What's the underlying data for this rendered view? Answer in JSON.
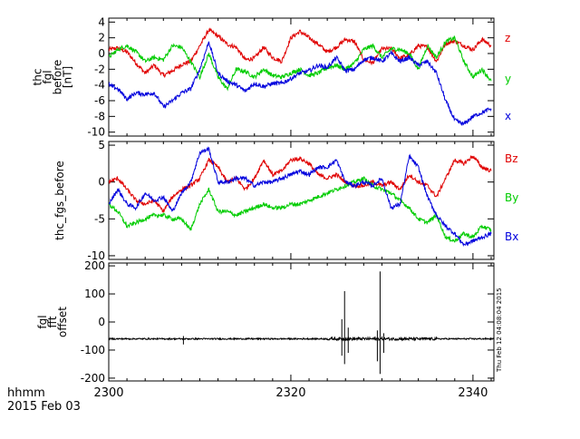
{
  "chart_data": [
    {
      "type": "line",
      "ylabel_lines": [
        "thc",
        "fgl",
        "before",
        "[nT]"
      ],
      "ylim": [
        -10.5,
        4.5
      ],
      "yticks": [
        -10,
        -8,
        -6,
        -4,
        -2,
        0,
        2,
        4
      ],
      "xlim": [
        2300,
        2342.3
      ],
      "legend_position": "right",
      "series": [
        {
          "name": "z",
          "color": "#e00000",
          "x": [
            2300,
            2301,
            2302,
            2303,
            2304,
            2305,
            2306,
            2307,
            2308,
            2309,
            2310,
            2311,
            2312,
            2313,
            2314,
            2315,
            2316,
            2317,
            2318,
            2319,
            2320,
            2321,
            2322,
            2323,
            2324,
            2325,
            2326,
            2327,
            2328,
            2329,
            2330,
            2331,
            2332,
            2333,
            2334,
            2335,
            2336,
            2337,
            2338,
            2339,
            2340,
            2341,
            2342
          ],
          "y": [
            0.5,
            0.7,
            0.2,
            -1.2,
            -2.5,
            -1.5,
            -2.8,
            -2.2,
            -1.4,
            -1.0,
            1.0,
            3.0,
            2.2,
            1.2,
            0.8,
            -0.8,
            -0.6,
            0.8,
            -0.5,
            -1.0,
            2.0,
            2.8,
            2.0,
            1.2,
            0.2,
            0.8,
            1.8,
            1.5,
            -0.8,
            -1.2,
            0.6,
            0.6,
            -0.6,
            -0.2,
            1.0,
            0.8,
            -1.0,
            1.3,
            1.6,
            1.0,
            0.5,
            1.8,
            1.0
          ]
        },
        {
          "name": "y",
          "color": "#00cc00",
          "x": [
            2300,
            2301,
            2302,
            2303,
            2304,
            2305,
            2306,
            2307,
            2308,
            2309,
            2310,
            2311,
            2312,
            2313,
            2314,
            2315,
            2316,
            2317,
            2318,
            2319,
            2320,
            2321,
            2322,
            2323,
            2324,
            2325,
            2326,
            2327,
            2328,
            2329,
            2330,
            2331,
            2332,
            2333,
            2334,
            2335,
            2336,
            2337,
            2338,
            2339,
            2340,
            2341,
            2342
          ],
          "y": [
            -0.5,
            0.5,
            1.0,
            0.2,
            -1.0,
            -0.5,
            -0.8,
            1.0,
            0.8,
            -1.0,
            -3.0,
            0.0,
            -3.0,
            -4.5,
            -2.0,
            -2.3,
            -3.0,
            -2.0,
            -2.8,
            -3.0,
            -2.5,
            -2.0,
            -2.8,
            -2.5,
            -1.8,
            -1.5,
            -2.0,
            -1.2,
            0.5,
            1.0,
            -0.5,
            0.6,
            0.5,
            0.0,
            -2.0,
            1.0,
            -0.5,
            1.5,
            2.0,
            -1.0,
            -3.0,
            -2.0,
            -3.5
          ]
        },
        {
          "name": "x",
          "color": "#0000dd",
          "x": [
            2300,
            2301,
            2302,
            2303,
            2304,
            2305,
            2306,
            2307,
            2308,
            2309,
            2310,
            2311,
            2312,
            2313,
            2314,
            2315,
            2316,
            2317,
            2318,
            2319,
            2320,
            2321,
            2322,
            2323,
            2324,
            2325,
            2326,
            2327,
            2328,
            2329,
            2330,
            2331,
            2332,
            2333,
            2334,
            2335,
            2336,
            2337,
            2338,
            2339,
            2340,
            2341,
            2342
          ],
          "y": [
            -4.0,
            -4.5,
            -5.8,
            -5.0,
            -5.2,
            -5.0,
            -6.8,
            -6.0,
            -5.0,
            -4.5,
            -2.0,
            1.5,
            -2.5,
            -3.5,
            -4.0,
            -4.8,
            -3.8,
            -4.2,
            -3.8,
            -3.8,
            -3.2,
            -2.5,
            -2.2,
            -1.5,
            -1.8,
            -0.5,
            -2.2,
            -2.0,
            -0.8,
            -0.5,
            -1.0,
            0.0,
            -1.0,
            -0.5,
            -1.5,
            -1.0,
            -2.5,
            -6.0,
            -8.5,
            -9.0,
            -8.0,
            -7.5,
            -7.0
          ]
        }
      ]
    },
    {
      "type": "line",
      "ylabel_lines": [
        "thc_fgs_before"
      ],
      "ylim": [
        -10.5,
        5.5
      ],
      "yticks": [
        -10,
        -5,
        0,
        5
      ],
      "xlim": [
        2300,
        2342.3
      ],
      "legend_position": "right",
      "series": [
        {
          "name": "Bz",
          "color": "#e00000",
          "x": [
            2300,
            2301,
            2302,
            2303,
            2304,
            2305,
            2306,
            2307,
            2308,
            2309,
            2310,
            2311,
            2312,
            2313,
            2314,
            2315,
            2316,
            2317,
            2318,
            2319,
            2320,
            2321,
            2322,
            2323,
            2324,
            2325,
            2326,
            2327,
            2328,
            2329,
            2330,
            2331,
            2332,
            2333,
            2334,
            2335,
            2336,
            2337,
            2338,
            2339,
            2340,
            2341,
            2342
          ],
          "y": [
            0.0,
            0.5,
            -1.0,
            -2.5,
            -3.0,
            -2.5,
            -4.0,
            -2.0,
            -1.0,
            -0.5,
            0.5,
            3.0,
            2.0,
            0.0,
            0.5,
            -1.0,
            0.5,
            3.0,
            1.0,
            1.5,
            3.0,
            3.2,
            2.5,
            1.0,
            0.5,
            1.0,
            0.0,
            -0.5,
            -0.5,
            0.0,
            -0.5,
            0.0,
            -1.0,
            1.0,
            0.0,
            -0.5,
            -2.0,
            0.5,
            3.0,
            2.5,
            3.5,
            2.0,
            1.5
          ]
        },
        {
          "name": "By",
          "color": "#00cc00",
          "x": [
            2300,
            2301,
            2302,
            2303,
            2304,
            2305,
            2306,
            2307,
            2308,
            2309,
            2310,
            2311,
            2312,
            2313,
            2314,
            2315,
            2316,
            2317,
            2318,
            2319,
            2320,
            2321,
            2322,
            2323,
            2324,
            2325,
            2326,
            2327,
            2328,
            2329,
            2330,
            2331,
            2332,
            2333,
            2334,
            2335,
            2336,
            2337,
            2338,
            2339,
            2340,
            2341,
            2342
          ],
          "y": [
            -3.0,
            -4.0,
            -6.0,
            -5.5,
            -5.0,
            -4.5,
            -4.5,
            -5.0,
            -5.0,
            -6.5,
            -3.0,
            -1.0,
            -4.0,
            -4.0,
            -4.5,
            -4.0,
            -3.5,
            -3.0,
            -3.5,
            -3.5,
            -3.0,
            -3.0,
            -2.5,
            -2.0,
            -1.5,
            -1.0,
            -0.5,
            0.0,
            0.5,
            -0.5,
            -1.0,
            -1.5,
            -2.5,
            -3.5,
            -5.0,
            -5.5,
            -4.5,
            -7.5,
            -8.0,
            -7.0,
            -7.5,
            -6.0,
            -6.5
          ]
        },
        {
          "name": "Bx",
          "color": "#0000dd",
          "x": [
            2300,
            2301,
            2302,
            2303,
            2304,
            2305,
            2306,
            2307,
            2308,
            2309,
            2310,
            2311,
            2312,
            2313,
            2314,
            2315,
            2316,
            2317,
            2318,
            2319,
            2320,
            2321,
            2322,
            2323,
            2324,
            2325,
            2326,
            2327,
            2328,
            2329,
            2330,
            2331,
            2332,
            2333,
            2334,
            2335,
            2336,
            2337,
            2338,
            2339,
            2340,
            2341,
            2342
          ],
          "y": [
            -3.0,
            -1.0,
            -3.0,
            -3.5,
            -1.5,
            -2.5,
            -2.0,
            -4.0,
            -1.5,
            0.0,
            4.0,
            4.5,
            0.0,
            0.0,
            0.5,
            0.5,
            -0.5,
            0.0,
            0.0,
            0.5,
            1.0,
            1.5,
            1.0,
            2.0,
            2.0,
            3.0,
            0.0,
            -0.5,
            0.0,
            -0.5,
            0.5,
            -3.5,
            -3.0,
            3.5,
            2.0,
            -2.0,
            -4.5,
            -6.0,
            -7.0,
            -8.5,
            -8.0,
            -7.5,
            -7.0
          ]
        }
      ]
    },
    {
      "type": "line",
      "ylabel_lines": [
        "fgl",
        "fft",
        "offset"
      ],
      "ylim": [
        -210,
        210
      ],
      "yticks": [
        -200,
        -100,
        0,
        100,
        200
      ],
      "xlim": [
        2300,
        2342.3
      ],
      "xticks": [
        2300,
        2320,
        2340
      ],
      "series": [
        {
          "name": "",
          "color": "#000000",
          "baseline": -60,
          "spikes": [
            {
              "x": 2308.2,
              "low": -80,
              "high": -50
            },
            {
              "x": 2325.6,
              "low": -120,
              "high": 10
            },
            {
              "x": 2325.9,
              "low": -150,
              "high": 110
            },
            {
              "x": 2326.3,
              "low": -110,
              "high": -20
            },
            {
              "x": 2329.5,
              "low": -140,
              "high": -30
            },
            {
              "x": 2329.8,
              "low": -185,
              "high": 180
            },
            {
              "x": 2330.2,
              "low": -110,
              "high": -40
            }
          ]
        }
      ]
    }
  ],
  "footer": {
    "xlabel_time": "hhmm",
    "xlabel_date": "2015 Feb 03",
    "stamp": "Thu Feb 12 04:08:04 2015"
  }
}
